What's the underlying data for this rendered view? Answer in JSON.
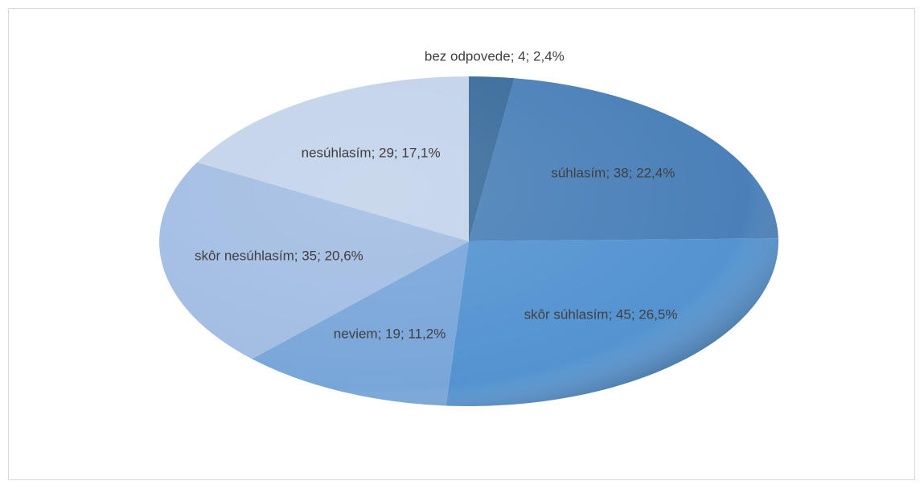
{
  "chart_data": {
    "type": "pie",
    "values": [
      4,
      38,
      45,
      19,
      35,
      29
    ],
    "value_labels": [
      "bez odpovede; 4; 2,4%",
      "súhlasím; 38; 22,4%",
      "skôr súhlasím; 45; 26,5%",
      "neviem; 19; 11,2%",
      "skôr nesúhlasím; 35; 20,6%",
      "nesúhlasím; 29; 17,1%"
    ],
    "colors": [
      "#3b6c9c",
      "#4a80b8",
      "#5493d0",
      "#79a6d9",
      "#a2bde2",
      "#c3d3ea"
    ]
  }
}
